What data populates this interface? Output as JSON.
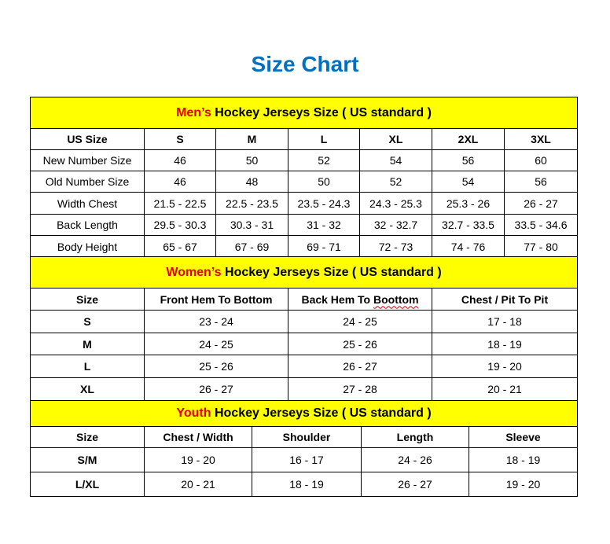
{
  "title": "Size Chart",
  "colors": {
    "title": "#0070C0",
    "band": "#FFFF00",
    "highlight": "#E00000"
  },
  "men": {
    "highlight": "Men’s",
    "heading": " Hockey Jerseys Size ( US standard )",
    "header": [
      "US Size",
      "S",
      "M",
      "L",
      "XL",
      "2XL",
      "3XL"
    ],
    "rows": [
      [
        "New Number Size",
        "46",
        "50",
        "52",
        "54",
        "56",
        "60"
      ],
      [
        "Old Number Size",
        "46",
        "48",
        "50",
        "52",
        "54",
        "56"
      ],
      [
        "Width Chest",
        "21.5 - 22.5",
        "22.5 - 23.5",
        "23.5 - 24.3",
        "24.3 - 25.3",
        "25.3 - 26",
        "26 - 27"
      ],
      [
        "Back Length",
        "29.5 - 30.3",
        "30.3 - 31",
        "31 - 32",
        "32 - 32.7",
        "32.7 - 33.5",
        "33.5 - 34.6"
      ],
      [
        "Body Height",
        "65 - 67",
        "67 - 69",
        "69 - 71",
        "72 - 73",
        "74 - 76",
        "77 - 80"
      ]
    ]
  },
  "women": {
    "highlight": "Women’s",
    "heading": " Hockey Jerseys Size ( US standard )",
    "header": [
      "Size",
      "Front Hem To Bottom",
      "Back Hem To Boottom",
      "Chest / Pit To Pit"
    ],
    "rows": [
      [
        "S",
        "23 - 24",
        "24 - 25",
        "17 - 18"
      ],
      [
        "M",
        "24 - 25",
        "25 - 26",
        "18 - 19"
      ],
      [
        "L",
        "25 - 26",
        "26 - 27",
        "19 - 20"
      ],
      [
        "XL",
        "26 - 27",
        "27 - 28",
        "20 - 21"
      ]
    ]
  },
  "youth": {
    "highlight": "Youth",
    "heading": " Hockey Jerseys Size ( US standard )",
    "header": [
      "Size",
      "Chest / Width",
      "Shoulder",
      "Length",
      "Sleeve"
    ],
    "rows": [
      [
        "S/M",
        "19 - 20",
        "16 - 17",
        "24 - 26",
        "18 - 19"
      ],
      [
        "L/XL",
        "20 - 21",
        "18 - 19",
        "26 - 27",
        "19 - 20"
      ]
    ]
  }
}
